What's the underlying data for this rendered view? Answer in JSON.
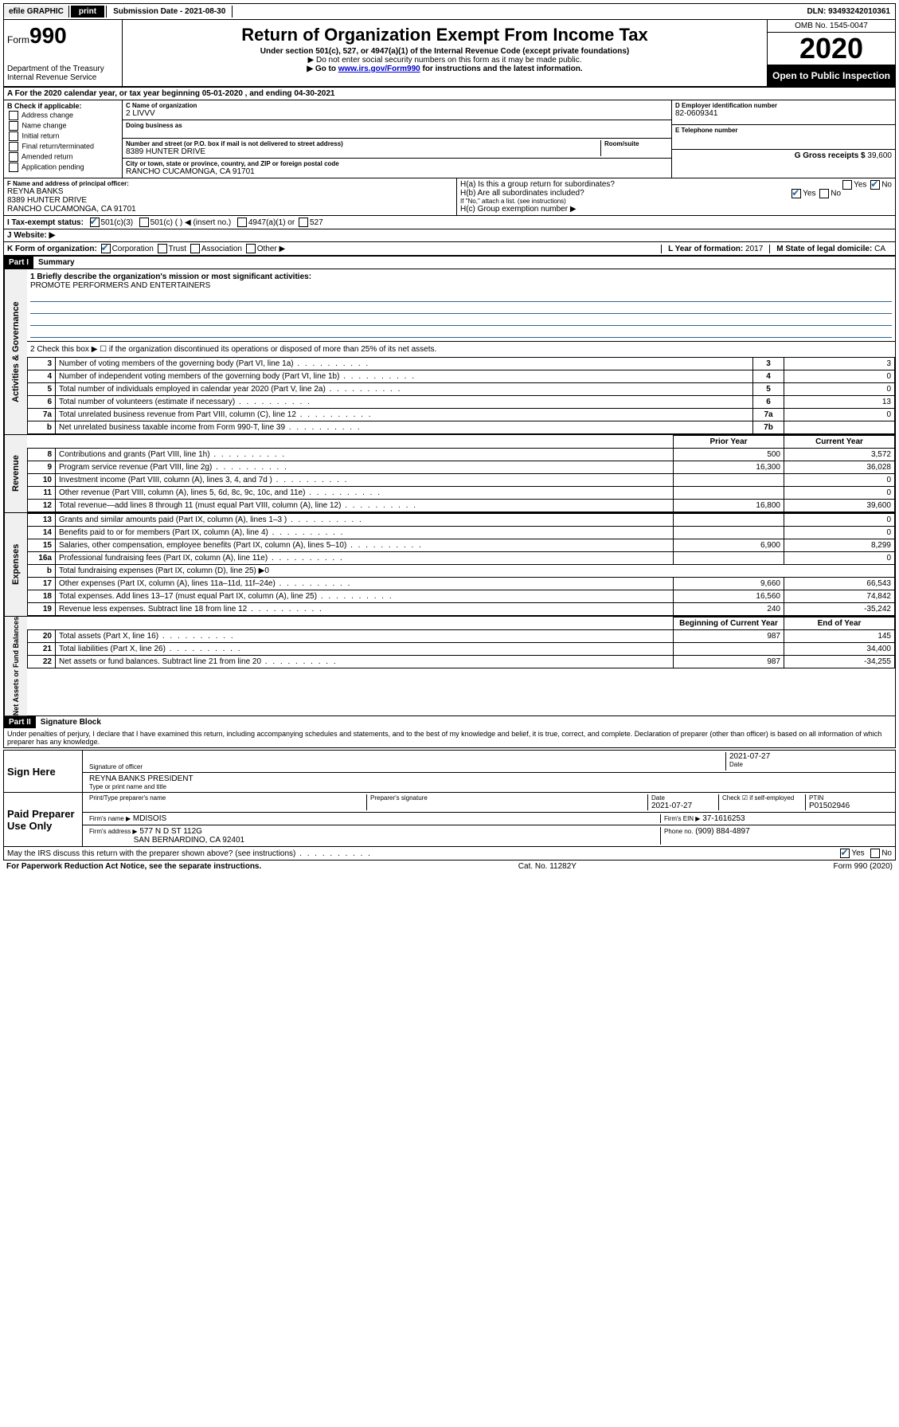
{
  "topbar": {
    "efile": "efile GRAPHIC",
    "print": "print",
    "submission_label": "Submission Date - ",
    "submission_date": "2021-08-30",
    "dln_label": "DLN: ",
    "dln": "93493242010361"
  },
  "header": {
    "form_label": "Form",
    "form_number": "990",
    "dept": "Department of the Treasury",
    "irs": "Internal Revenue Service",
    "title": "Return of Organization Exempt From Income Tax",
    "subtitle": "Under section 501(c), 527, or 4947(a)(1) of the Internal Revenue Code (except private foundations)",
    "note1": "▶ Do not enter social security numbers on this form as it may be made public.",
    "note2_pre": "▶ Go to ",
    "note2_link": "www.irs.gov/Form990",
    "note2_post": " for instructions and the latest information.",
    "omb": "OMB No. 1545-0047",
    "year": "2020",
    "open": "Open to Public Inspection"
  },
  "line_a": "A For the 2020 calendar year, or tax year beginning 05-01-2020   , and ending 04-30-2021",
  "box_b": {
    "title": "B Check if applicable:",
    "opts": [
      "Address change",
      "Name change",
      "Initial return",
      "Final return/terminated",
      "Amended return",
      "Application pending"
    ]
  },
  "box_c": {
    "name_lbl": "C Name of organization",
    "name": "2 LIVVV",
    "dba_lbl": "Doing business as",
    "addr_lbl": "Number and street (or P.O. box if mail is not delivered to street address)",
    "room_lbl": "Room/suite",
    "addr": "8389 HUNTER DRIVE",
    "city_lbl": "City or town, state or province, country, and ZIP or foreign postal code",
    "city": "RANCHO CUCAMONGA, CA  91701"
  },
  "box_d": {
    "lbl": "D Employer identification number",
    "val": "82-0609341"
  },
  "box_e": {
    "lbl": "E Telephone number",
    "val": ""
  },
  "box_g": {
    "lbl": "G Gross receipts $",
    "val": "39,600"
  },
  "box_f": {
    "lbl": "F  Name and address of principal officer:",
    "name": "REYNA BANKS",
    "addr1": "8389 HUNTER DRIVE",
    "addr2": "RANCHO CUCAMONGA, CA  91701"
  },
  "box_h": {
    "ha": "H(a)  Is this a group return for subordinates?",
    "hb": "H(b)  Are all subordinates included?",
    "hb_note": "If \"No,\" attach a list. (see instructions)",
    "hc": "H(c)  Group exemption number ▶"
  },
  "tax_status": {
    "lbl": "I    Tax-exempt status:",
    "c3": "501(c)(3)",
    "c": "501(c) (  ) ◀ (insert no.)",
    "a1": "4947(a)(1) or",
    "527": "527"
  },
  "website": {
    "lbl": "J    Website: ▶"
  },
  "line_k": {
    "lbl": "K Form of organization:",
    "opts": [
      "Corporation",
      "Trust",
      "Association",
      "Other ▶"
    ],
    "l_lbl": "L Year of formation:",
    "l_val": "2017",
    "m_lbl": "M State of legal domicile:",
    "m_val": "CA"
  },
  "part1": {
    "hdr": "Part I",
    "title": "Summary",
    "q1_lbl": "1  Briefly describe the organization's mission or most significant activities:",
    "q1_val": "PROMOTE PERFORMERS AND ENTERTAINERS",
    "q2": "2   Check this box ▶ ☐  if the organization discontinued its operations or disposed of more than 25% of its net assets."
  },
  "sections": [
    {
      "side": "Activities & Governance",
      "rows": [
        {
          "n": "3",
          "t": "Number of voting members of the governing body (Part VI, line 1a)",
          "box": "3",
          "v2": "3"
        },
        {
          "n": "4",
          "t": "Number of independent voting members of the governing body (Part VI, line 1b)",
          "box": "4",
          "v2": "0"
        },
        {
          "n": "5",
          "t": "Total number of individuals employed in calendar year 2020 (Part V, line 2a)",
          "box": "5",
          "v2": "0"
        },
        {
          "n": "6",
          "t": "Total number of volunteers (estimate if necessary)",
          "box": "6",
          "v2": "13"
        },
        {
          "n": "7a",
          "t": "Total unrelated business revenue from Part VIII, column (C), line 12",
          "box": "7a",
          "v2": "0"
        },
        {
          "n": "b",
          "t": "Net unrelated business taxable income from Form 990-T, line 39",
          "box": "7b",
          "v2": ""
        }
      ]
    }
  ],
  "year_headers": {
    "prior": "Prior Year",
    "current": "Current Year",
    "begin": "Beginning of Current Year",
    "end": "End of Year"
  },
  "revenue": {
    "side": "Revenue",
    "rows": [
      {
        "n": "8",
        "t": "Contributions and grants (Part VIII, line 1h)",
        "v1": "500",
        "v2": "3,572"
      },
      {
        "n": "9",
        "t": "Program service revenue (Part VIII, line 2g)",
        "v1": "16,300",
        "v2": "36,028"
      },
      {
        "n": "10",
        "t": "Investment income (Part VIII, column (A), lines 3, 4, and 7d )",
        "v1": "",
        "v2": "0"
      },
      {
        "n": "11",
        "t": "Other revenue (Part VIII, column (A), lines 5, 6d, 8c, 9c, 10c, and 11e)",
        "v1": "",
        "v2": "0"
      },
      {
        "n": "12",
        "t": "Total revenue—add lines 8 through 11 (must equal Part VIII, column (A), line 12)",
        "v1": "16,800",
        "v2": "39,600"
      }
    ]
  },
  "expenses": {
    "side": "Expenses",
    "rows": [
      {
        "n": "13",
        "t": "Grants and similar amounts paid (Part IX, column (A), lines 1–3 )",
        "v1": "",
        "v2": "0"
      },
      {
        "n": "14",
        "t": "Benefits paid to or for members (Part IX, column (A), line 4)",
        "v1": "",
        "v2": "0"
      },
      {
        "n": "15",
        "t": "Salaries, other compensation, employee benefits (Part IX, column (A), lines 5–10)",
        "v1": "6,900",
        "v2": "8,299"
      },
      {
        "n": "16a",
        "t": "Professional fundraising fees (Part IX, column (A), line 11e)",
        "v1": "",
        "v2": "0"
      },
      {
        "n": "b",
        "t": "Total fundraising expenses (Part IX, column (D), line 25) ▶0",
        "v1": null,
        "v2": null
      },
      {
        "n": "17",
        "t": "Other expenses (Part IX, column (A), lines 11a–11d, 11f–24e)",
        "v1": "9,660",
        "v2": "66,543"
      },
      {
        "n": "18",
        "t": "Total expenses. Add lines 13–17 (must equal Part IX, column (A), line 25)",
        "v1": "16,560",
        "v2": "74,842"
      },
      {
        "n": "19",
        "t": "Revenue less expenses. Subtract line 18 from line 12",
        "v1": "240",
        "v2": "-35,242"
      }
    ]
  },
  "netassets": {
    "side": "Net Assets or Fund Balances",
    "rows": [
      {
        "n": "20",
        "t": "Total assets (Part X, line 16)",
        "v1": "987",
        "v2": "145"
      },
      {
        "n": "21",
        "t": "Total liabilities (Part X, line 26)",
        "v1": "",
        "v2": "34,400"
      },
      {
        "n": "22",
        "t": "Net assets or fund balances. Subtract line 21 from line 20",
        "v1": "987",
        "v2": "-34,255"
      }
    ]
  },
  "part2": {
    "hdr": "Part II",
    "title": "Signature Block",
    "perjury": "Under penalties of perjury, I declare that I have examined this return, including accompanying schedules and statements, and to the best of my knowledge and belief, it is true, correct, and complete. Declaration of preparer (other than officer) is based on all information of which preparer has any knowledge."
  },
  "sign": {
    "lbl": "Sign Here",
    "sig_lbl": "Signature of officer",
    "date": "2021-07-27",
    "date_lbl": "Date",
    "name": "REYNA BANKS PRESIDENT",
    "name_lbl": "Type or print name and title"
  },
  "paid": {
    "lbl": "Paid Preparer Use Only",
    "prep_name_lbl": "Print/Type preparer's name",
    "prep_sig_lbl": "Preparer's signature",
    "date_lbl": "Date",
    "date": "2021-07-27",
    "check_lbl": "Check ☑ if self-employed",
    "ptin_lbl": "PTIN",
    "ptin": "P01502946",
    "firm_name_lbl": "Firm's name    ▶",
    "firm_name": "MDISOIS",
    "firm_ein_lbl": "Firm's EIN ▶",
    "firm_ein": "37-1616253",
    "firm_addr_lbl": "Firm's address ▶",
    "firm_addr1": "577 N D ST 112G",
    "firm_addr2": "SAN BERNARDINO, CA  92401",
    "phone_lbl": "Phone no.",
    "phone": "(909) 884-4897"
  },
  "discuss": "May the IRS discuss this return with the preparer shown above? (see instructions)",
  "footer": {
    "left": "For Paperwork Reduction Act Notice, see the separate instructions.",
    "mid": "Cat. No. 11282Y",
    "right": "Form 990 (2020)"
  },
  "yesno": {
    "yes": "Yes",
    "no": "No"
  }
}
